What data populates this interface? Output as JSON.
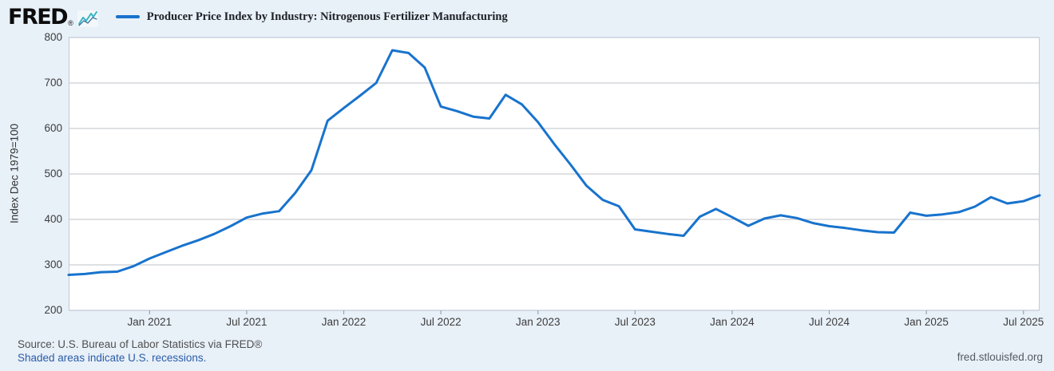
{
  "header": {
    "logo_text": "FRED",
    "registered_mark": "®",
    "legend_label": "Producer Price Index by Industry: Nitrogenous Fertilizer Manufacturing"
  },
  "footer": {
    "source_line": "Source: U.S. Bureau of Labor Statistics via FRED®",
    "recession_note": "Shaded areas indicate U.S. recessions.",
    "site_link": "fred.stlouisfed.org"
  },
  "colors": {
    "background": "#e8f0f8",
    "plot_background": "#ffffff",
    "line": "#1873cd",
    "gridline": "#c9cdd2",
    "axis_border": "#c2cad4",
    "tick_mark": "#9aa4b0",
    "link": "#2a5ca8",
    "logo_teal": "#39b5c4"
  },
  "chart_data": {
    "type": "line",
    "title": "Producer Price Index by Industry: Nitrogenous Fertilizer Manufacturing",
    "ylabel": "Index Dec 1979=100",
    "xlabel": "",
    "ylim": [
      200,
      800
    ],
    "y_ticks": [
      800,
      700,
      600,
      500,
      400,
      300,
      200
    ],
    "grid": true,
    "legend_position": "top-left",
    "x": [
      "Aug 2020",
      "Sep 2020",
      "Oct 2020",
      "Nov 2020",
      "Dec 2020",
      "Jan 2021",
      "Feb 2021",
      "Mar 2021",
      "Apr 2021",
      "May 2021",
      "Jun 2021",
      "Jul 2021",
      "Aug 2021",
      "Sep 2021",
      "Oct 2021",
      "Nov 2021",
      "Dec 2021",
      "Jan 2022",
      "Feb 2022",
      "Mar 2022",
      "Apr 2022",
      "May 2022",
      "Jun 2022",
      "Jul 2022",
      "Aug 2022",
      "Sep 2022",
      "Oct 2022",
      "Nov 2022",
      "Dec 2022",
      "Jan 2023",
      "Feb 2023",
      "Mar 2023",
      "Apr 2023",
      "May 2023",
      "Jun 2023",
      "Jul 2023",
      "Aug 2023",
      "Sep 2023",
      "Oct 2023",
      "Nov 2023",
      "Dec 2023",
      "Jan 2024",
      "Feb 2024",
      "Mar 2024",
      "Apr 2024",
      "May 2024",
      "Jun 2024",
      "Jul 2024",
      "Aug 2024",
      "Sep 2024",
      "Oct 2024",
      "Nov 2024",
      "Dec 2024",
      "Jan 2025",
      "Feb 2025",
      "Mar 2025",
      "Apr 2025",
      "May 2025",
      "Jun 2025",
      "Jul 2025",
      "Aug 2025"
    ],
    "x_tick_indices": [
      5,
      11,
      17,
      23,
      29,
      35,
      41,
      47,
      53,
      59
    ],
    "x_tick_labels": [
      "Jan 2021",
      "Jul 2021",
      "Jan 2022",
      "Jul 2022",
      "Jan 2023",
      "Jul 2023",
      "Jan 2024",
      "Jul 2024",
      "Jan 2025",
      "Jul 2025"
    ],
    "series": [
      {
        "name": "Producer Price Index by Industry: Nitrogenous Fertilizer Manufacturing",
        "values": [
          278,
          280,
          284,
          285,
          297,
          314,
          328,
          342,
          354,
          368,
          385,
          404,
          413,
          418,
          458,
          508,
          617,
          645,
          672,
          700,
          772,
          766,
          734,
          648,
          638,
          626,
          622,
          674,
          653,
          614,
          566,
          521,
          474,
          443,
          429,
          378,
          373,
          368,
          364,
          406,
          423,
          405,
          386,
          402,
          409,
          403,
          392,
          385,
          381,
          376,
          372,
          371,
          415,
          408,
          411,
          416,
          428,
          449,
          435,
          440,
          453
        ]
      }
    ]
  }
}
